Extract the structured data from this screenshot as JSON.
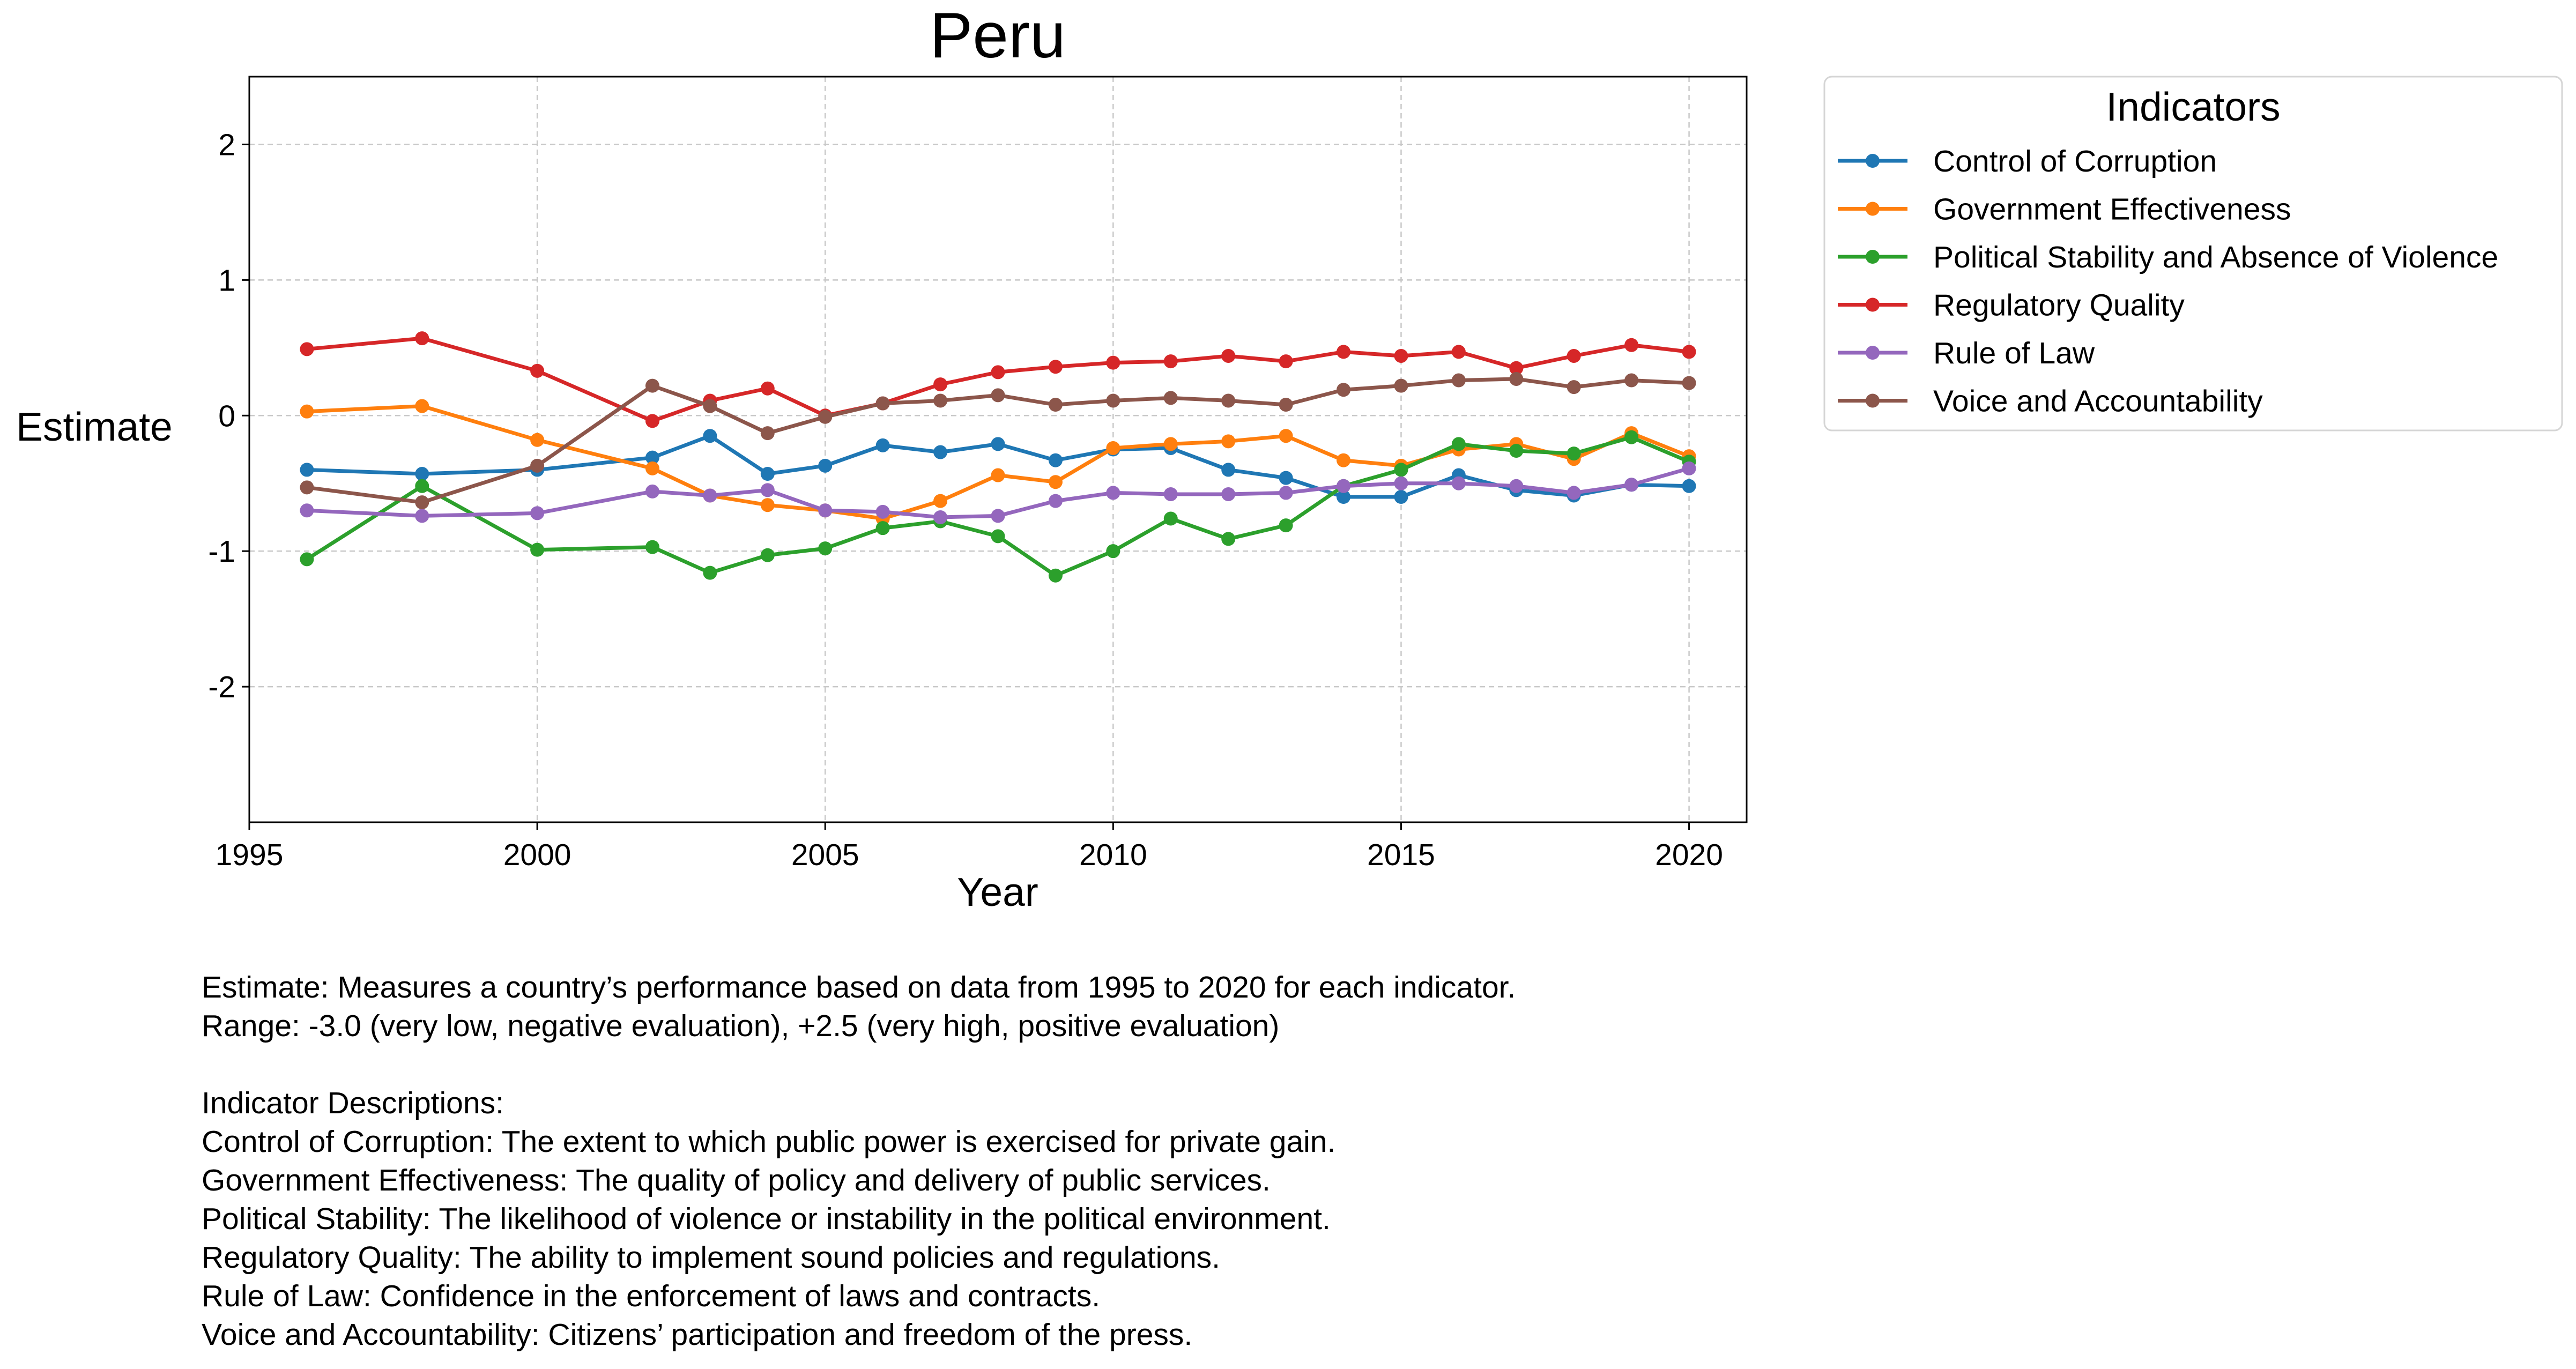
{
  "chart_data": {
    "type": "line",
    "title": "Peru",
    "xlabel": "Year",
    "ylabel": "Estimate",
    "xlim": [
      1995,
      2021
    ],
    "ylim": [
      -3.0,
      2.5
    ],
    "xticks": [
      1995,
      2000,
      2005,
      2010,
      2015,
      2020
    ],
    "yticks": [
      -2,
      -1,
      0,
      1,
      2
    ],
    "grid": true,
    "legend": {
      "title": "Indicators",
      "placement": "outside-top-right"
    },
    "x": [
      1996,
      1998,
      2000,
      2002,
      2003,
      2004,
      2005,
      2006,
      2007,
      2008,
      2009,
      2010,
      2011,
      2012,
      2013,
      2014,
      2015,
      2016,
      2017,
      2018,
      2019,
      2020
    ],
    "series": [
      {
        "name": "Control of Corruption",
        "color": "#1f77b4",
        "values": [
          -0.4,
          -0.43,
          -0.4,
          -0.31,
          -0.15,
          -0.43,
          -0.37,
          -0.22,
          -0.27,
          -0.21,
          -0.33,
          -0.25,
          -0.24,
          -0.4,
          -0.46,
          -0.6,
          -0.6,
          -0.44,
          -0.55,
          -0.59,
          -0.51,
          -0.52
        ]
      },
      {
        "name": "Government Effectiveness",
        "color": "#ff7f0e",
        "values": [
          0.03,
          0.07,
          -0.18,
          -0.39,
          -0.59,
          -0.66,
          -0.7,
          -0.76,
          -0.63,
          -0.44,
          -0.49,
          -0.24,
          -0.21,
          -0.19,
          -0.15,
          -0.33,
          -0.37,
          -0.25,
          -0.21,
          -0.32,
          -0.13,
          -0.3
        ]
      },
      {
        "name": "Political Stability and Absence of Violence",
        "color": "#2ca02c",
        "values": [
          -1.06,
          -0.52,
          -0.99,
          -0.97,
          -1.16,
          -1.03,
          -0.98,
          -0.83,
          -0.78,
          -0.89,
          -1.18,
          -1.0,
          -0.76,
          -0.91,
          -0.81,
          -0.52,
          -0.4,
          -0.21,
          -0.26,
          -0.28,
          -0.16,
          -0.34
        ]
      },
      {
        "name": "Regulatory Quality",
        "color": "#d62728",
        "values": [
          0.49,
          0.57,
          0.33,
          -0.04,
          0.11,
          0.2,
          0.0,
          0.09,
          0.23,
          0.32,
          0.36,
          0.39,
          0.4,
          0.44,
          0.4,
          0.47,
          0.44,
          0.47,
          0.35,
          0.44,
          0.52,
          0.47
        ]
      },
      {
        "name": "Rule of Law",
        "color": "#9467bd",
        "values": [
          -0.7,
          -0.74,
          -0.72,
          -0.56,
          -0.59,
          -0.55,
          -0.7,
          -0.71,
          -0.75,
          -0.74,
          -0.63,
          -0.57,
          -0.58,
          -0.58,
          -0.57,
          -0.52,
          -0.5,
          -0.5,
          -0.52,
          -0.57,
          -0.51,
          -0.39
        ]
      },
      {
        "name": "Voice and Accountability",
        "color": "#8c564b",
        "values": [
          -0.53,
          -0.64,
          -0.37,
          0.22,
          0.07,
          -0.13,
          -0.01,
          0.09,
          0.11,
          0.15,
          0.08,
          0.11,
          0.13,
          0.11,
          0.08,
          0.19,
          0.22,
          0.26,
          0.27,
          0.21,
          0.26,
          0.24
        ]
      }
    ]
  },
  "notes": {
    "estimate": "Estimate: Measures a country’s performance based on data from 1995 to 2020 for each indicator.",
    "range": "Range: -3.0 (very low, negative evaluation), +2.5 (very high, positive evaluation)",
    "descriptions_title": "Indicator Descriptions:",
    "descriptions": [
      "Control of Corruption: The extent to which public power is exercised for private gain.",
      "Government Effectiveness: The quality of policy and delivery of public services.",
      "Political Stability: The likelihood of violence or instability in the political environment.",
      "Regulatory Quality: The ability to implement sound policies and regulations.",
      "Rule of Law: Confidence in the enforcement of laws and contracts.",
      "Voice and Accountability: Citizens’ participation and freedom of the press."
    ]
  }
}
